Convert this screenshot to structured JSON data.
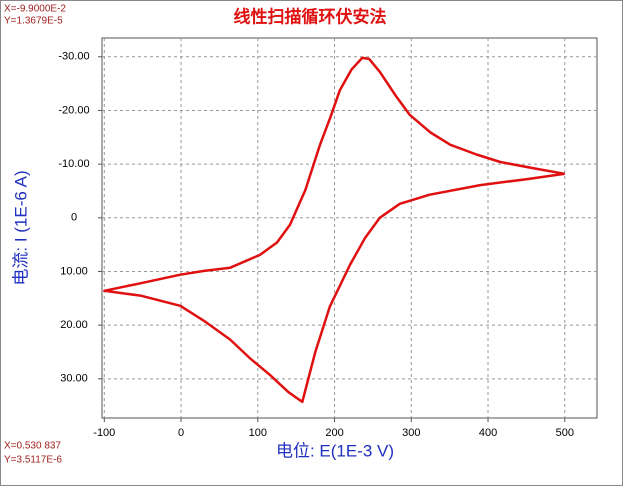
{
  "chart_data": {
    "type": "line",
    "title": "线性扫描循环伏安法",
    "x_label": "电位: E(1E-3 V)",
    "y_label": "电流: I (1E-6 A)",
    "annotations": [
      "X=-9.9000E-2",
      "Y=1.3679E-5",
      "X=0.530 837",
      "Y=3.5117E-6"
    ],
    "x": [
      500,
      450,
      390,
      324,
      285,
      259,
      240,
      220,
      194,
      175,
      158,
      140,
      116,
      90,
      64,
      30,
      -1,
      -53,
      -100,
      -53,
      -1,
      30,
      64,
      103,
      125,
      142,
      162,
      181,
      195,
      207,
      222,
      236,
      245,
      259,
      280,
      298,
      325,
      351,
      385,
      416,
      460,
      500
    ],
    "values": [
      -8.2,
      -7.2,
      -6.1,
      -4.3,
      -2.6,
      0,
      3.7,
      8.8,
      16.5,
      25,
      34.3,
      32.5,
      29.3,
      26.2,
      22.7,
      19.2,
      16.4,
      14.5,
      13.6,
      12.2,
      10.6,
      9.9,
      9.3,
      6.9,
      4.6,
      1.3,
      -5.2,
      -13.6,
      -18.9,
      -23.8,
      -27.6,
      -29.8,
      -29.6,
      -27.2,
      -22.7,
      -19.2,
      -15.9,
      -13.6,
      -11.8,
      -10.4,
      -9.2,
      -8.2
    ],
    "color": "#e01010",
    "xlim": [
      -103,
      542
    ],
    "ylim": [
      -33.5,
      37.3
    ],
    "y_inverted": true,
    "xticks": [
      -100,
      0,
      100,
      200,
      300,
      400,
      500
    ],
    "yticks": [
      {
        "value": -30,
        "label": "-30.00"
      },
      {
        "value": -20,
        "label": "-20.00"
      },
      {
        "value": -10,
        "label": "-10.00"
      },
      0,
      {
        "value": 10,
        "label": "10.00"
      },
      {
        "value": 20,
        "label": "20.00"
      },
      {
        "value": 30,
        "label": "30.00"
      }
    ],
    "grid": true
  }
}
